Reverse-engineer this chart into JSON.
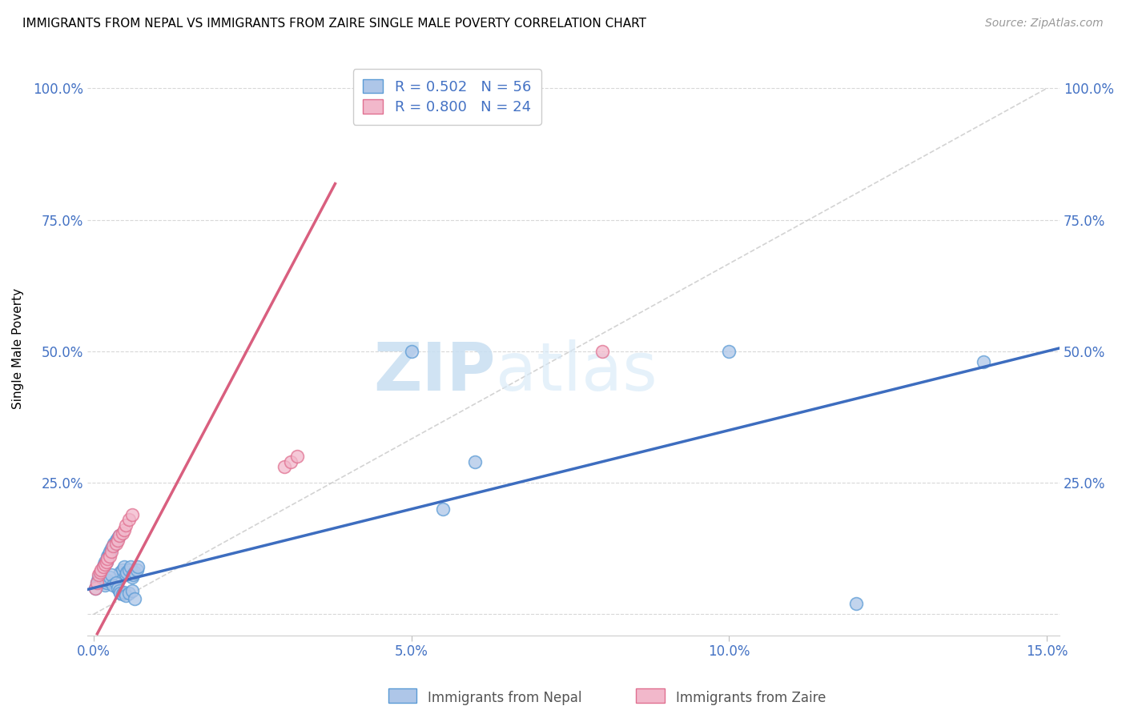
{
  "title": "IMMIGRANTS FROM NEPAL VS IMMIGRANTS FROM ZAIRE SINGLE MALE POVERTY CORRELATION CHART",
  "source": "Source: ZipAtlas.com",
  "ylabel_label": "Single Male Poverty",
  "xlim": [
    -0.001,
    0.152
  ],
  "ylim": [
    -0.04,
    1.05
  ],
  "xticks": [
    0.0,
    0.05,
    0.1,
    0.15
  ],
  "xticklabels": [
    "0.0%",
    "5.0%",
    "10.0%",
    "15.0%"
  ],
  "yticks": [
    0.0,
    0.25,
    0.5,
    0.75,
    1.0
  ],
  "yticklabels_left": [
    "",
    "25.0%",
    "50.0%",
    "75.0%",
    "100.0%"
  ],
  "yticklabels_right": [
    "",
    "25.0%",
    "50.0%",
    "75.0%",
    "100.0%"
  ],
  "nepal_color": "#aec6e8",
  "nepal_edge": "#5b9bd5",
  "zaire_color": "#f2b8cb",
  "zaire_edge": "#e07090",
  "nepal_line_color": "#3d6dbf",
  "zaire_line_color": "#d95f7f",
  "diagonal_color": "#c8c8c8",
  "R_nepal": 0.502,
  "N_nepal": 56,
  "R_zaire": 0.8,
  "N_zaire": 24,
  "nepal_x": [
    0.0003,
    0.0005,
    0.0007,
    0.0008,
    0.001,
    0.0012,
    0.0014,
    0.0015,
    0.0016,
    0.0018,
    0.002,
    0.0022,
    0.0024,
    0.0025,
    0.0028,
    0.003,
    0.0032,
    0.0035,
    0.0038,
    0.004,
    0.0042,
    0.0045,
    0.0048,
    0.005,
    0.0052,
    0.0055,
    0.0058,
    0.006,
    0.0062,
    0.0065,
    0.0068,
    0.007,
    0.0012,
    0.0015,
    0.0018,
    0.002,
    0.0022,
    0.0025,
    0.0028,
    0.003,
    0.0035,
    0.0038,
    0.004,
    0.0042,
    0.0045,
    0.0048,
    0.005,
    0.0055,
    0.006,
    0.0065,
    0.05,
    0.055,
    0.06,
    0.1,
    0.12,
    0.14
  ],
  "nepal_y": [
    0.05,
    0.06,
    0.065,
    0.07,
    0.075,
    0.08,
    0.085,
    0.09,
    0.095,
    0.1,
    0.1,
    0.11,
    0.115,
    0.12,
    0.125,
    0.13,
    0.135,
    0.14,
    0.145,
    0.15,
    0.08,
    0.085,
    0.09,
    0.075,
    0.08,
    0.085,
    0.09,
    0.07,
    0.075,
    0.08,
    0.085,
    0.09,
    0.06,
    0.065,
    0.055,
    0.06,
    0.065,
    0.07,
    0.075,
    0.055,
    0.06,
    0.05,
    0.045,
    0.04,
    0.038,
    0.042,
    0.035,
    0.04,
    0.045,
    0.03,
    0.5,
    0.2,
    0.29,
    0.5,
    0.02,
    0.48
  ],
  "zaire_x": [
    0.0003,
    0.0005,
    0.0008,
    0.001,
    0.0012,
    0.0015,
    0.0018,
    0.002,
    0.0022,
    0.0025,
    0.0028,
    0.003,
    0.0035,
    0.0038,
    0.004,
    0.0045,
    0.0048,
    0.005,
    0.0055,
    0.006,
    0.03,
    0.031,
    0.032,
    0.08
  ],
  "zaire_y": [
    0.05,
    0.06,
    0.075,
    0.08,
    0.085,
    0.09,
    0.095,
    0.1,
    0.105,
    0.11,
    0.12,
    0.13,
    0.135,
    0.14,
    0.15,
    0.155,
    0.16,
    0.17,
    0.18,
    0.19,
    0.28,
    0.29,
    0.3,
    0.5
  ],
  "legend_nepal_label": "Immigrants from Nepal",
  "legend_zaire_label": "Immigrants from Zaire",
  "watermark_zip": "ZIP",
  "watermark_atlas": "atlas",
  "background_color": "#ffffff",
  "grid_color": "#d8d8d8",
  "tick_color": "#4472c4"
}
